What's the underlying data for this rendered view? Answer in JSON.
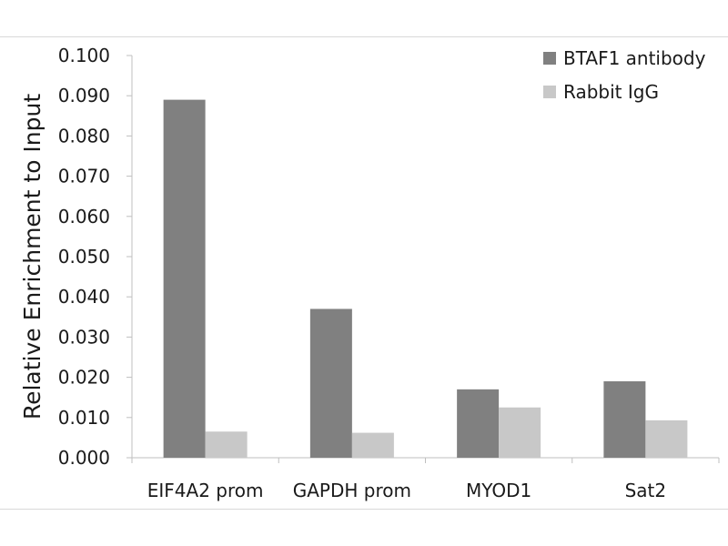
{
  "colors": {
    "series_1": "#808080",
    "series_2": "#c8c8c8",
    "axis": "#bfbfbf"
  },
  "chart_data": {
    "type": "bar",
    "title": "",
    "xlabel": "",
    "ylabel": "Relative Enrichment to Input",
    "categories": [
      "EIF4A2 prom",
      "GAPDH prom",
      "MYOD1",
      "Sat2"
    ],
    "series": [
      {
        "name": "BTAF1 antibody",
        "values": [
          0.089,
          0.037,
          0.017,
          0.019
        ]
      },
      {
        "name": "Rabbit IgG",
        "values": [
          0.0065,
          0.0062,
          0.0125,
          0.0093
        ]
      }
    ],
    "ylim": [
      0,
      0.1
    ],
    "yticks": [
      "0.000",
      "0.010",
      "0.020",
      "0.030",
      "0.040",
      "0.050",
      "0.060",
      "0.070",
      "0.080",
      "0.090",
      "0.100"
    ],
    "grid": false,
    "legend_position": "top-right"
  }
}
